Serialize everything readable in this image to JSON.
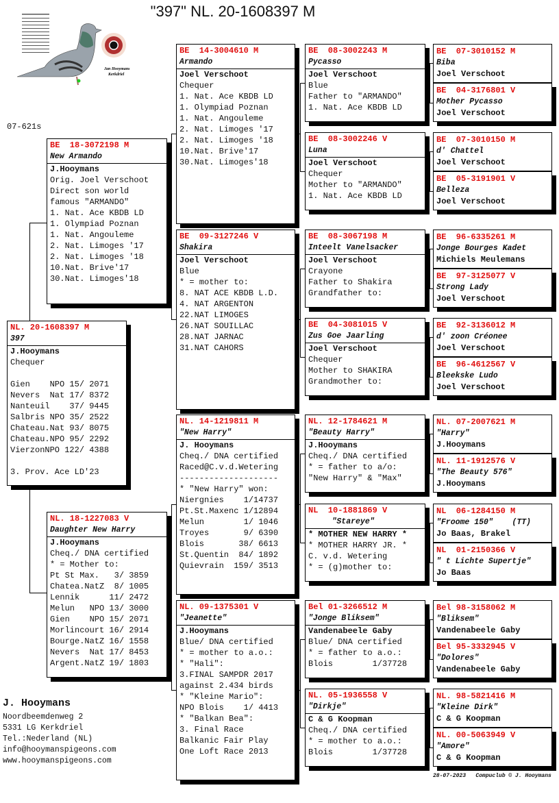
{
  "title": "\"397\"  NL. 20-1608397 M",
  "code": "07-621s",
  "logo_text": "Jan Hooymans Kerkdriel",
  "subject": {
    "ring": "NL. 20-1608397 M",
    "name": "397",
    "lines": [
      "J.Hooymans",
      "Chequer",
      "",
      "Gien    NPO 15/ 2071",
      "Nevers  Nat 17/ 8372",
      "Nanteuil    37/ 9445",
      "Salbris NPO 35/ 2522",
      "Chateau.Nat 93/ 8075",
      "Chateau.NPO 95/ 2292",
      "VierzonNPO 122/ 4388",
      "",
      "3. Prov. Ace LD'23"
    ]
  },
  "gen2": [
    {
      "ring": "BE  18-3072198 M",
      "name": "New Armando",
      "lines": [
        "J.Hooymans",
        "Orig. Joel Verschoot",
        "Direct son world",
        "famous \"ARMANDO\"",
        "1. Nat. Ace KBDB LD",
        "1. Olympiad Poznan",
        "1. Nat. Angouleme",
        "2. Nat. Limoges '17",
        "2. Nat. Limoges '18",
        "10.Nat. Brive'17",
        "30.Nat. Limoges'18"
      ]
    },
    {
      "ring": "NL. 18-1227083 V",
      "name": "Daughter New Harry",
      "lines": [
        "J.Hooymans",
        "Cheq./ DNA certified",
        "* = Mother to:",
        "Pt St Max.   3/ 3859",
        "Chatea.NatZ  8/ 1005",
        "Lennik      11/ 2472",
        "Melun   NPO 13/ 3000",
        "Gien    NPO 15/ 2071",
        "Morlincourt 16/ 2914",
        "Bourge.NatZ 16/ 1558",
        "Nevers  Nat 17/ 8453",
        "Argent.NatZ 19/ 1803"
      ]
    }
  ],
  "gen3": [
    {
      "ring": "BE  14-3004610 M",
      "name": "Armando",
      "lines": [
        "Joel Verschoot",
        "Chequer",
        "1. Nat. Ace KBDB LD",
        "1. Olympiad Poznan",
        "1. Nat. Angouleme",
        "2. Nat. Limoges '17",
        "2. Nat. Limoges '18",
        "10.Nat. Brive'17",
        "30.Nat. Limoges'18"
      ]
    },
    {
      "ring": "BE  09-3127246 V",
      "name": "Shakira",
      "lines": [
        "Joel Verschoot",
        "Blue",
        "* = mother to:",
        "8. NAT ACE KBDB L.D.",
        "4. NAT ARGENTON",
        "22.NAT LIMOGES",
        "26.NAT SOUILLAC",
        "28.NAT JARNAC",
        "31.NAT CAHORS"
      ]
    },
    {
      "ring": "NL. 14-1219811 M",
      "name": "\"New Harry\"",
      "lines": [
        "J. Hooymans",
        "Cheq./ DNA certified",
        "Raced@C.v.d.Wetering",
        "--------------------",
        "* \"New Harry\" won:",
        "Niergnies    1/14737",
        "Pt.St.Maxenc 1/12894",
        "Melun        1/ 1046",
        "Troyes       9/ 6390",
        "Blois       38/ 6613",
        "St.Quentin  84/ 1892",
        "Quievrain  159/ 3513"
      ]
    },
    {
      "ring": "NL. 09-1375301 V",
      "name": "\"Jeanette\"",
      "lines": [
        "J.Hooymans",
        "Blue/ DNA certified",
        "* = mother to a.o.:",
        "* \"Hali\":",
        "3.FINAL SAMPDR 2017",
        "against 2.434 birds",
        "* \"Kleine Mario\":",
        "NPO Blois    1/ 4413",
        "* \"Balkan Bea\":",
        "3. Final Race",
        "Balkanic Fair Play",
        "One Loft Race 2013"
      ]
    }
  ],
  "gen4": [
    {
      "ring": "BE  08-3002243 M",
      "name": "Pycasso",
      "lines": [
        "Joel Verschoot",
        "Blue",
        "Father to \"ARMANDO\"",
        "1. Nat. Ace KBDB LD"
      ]
    },
    {
      "ring": "BE  08-3002246 V",
      "name": "Luna",
      "lines": [
        "Joel Verschoot",
        "Chequer",
        "Mother to \"ARMANDO\"",
        "1. Nat. Ace KBDB LD"
      ]
    },
    {
      "ring": "BE  08-3067198 M",
      "name": "Inteelt Vanelsacker",
      "lines": [
        "Joel Verschoot",
        "Crayone",
        "Father to Shakira",
        "Grandfather to:"
      ]
    },
    {
      "ring": "BE  04-3081015 V",
      "name": "Zus Goe Jaarling",
      "lines": [
        "Joel Verschoot",
        "Chequer",
        "Mother to SHAKIRA",
        "Grandmother to:"
      ]
    },
    {
      "ring": "NL. 12-1784621 M",
      "name": "\"Beauty Harry\"",
      "lines": [
        "J.Hooymans",
        "Cheq./ DNA certified",
        "* = father to a/o:",
        "\"New Harry\" & \"Max\""
      ]
    },
    {
      "ring": "NL  10-1881869 V",
      "name": "     \"Stareye\"",
      "lines": [
        "* MOTHER NEW HARRY *",
        "* MOTHER HARRY JR. *",
        "C. v.d. Wetering",
        "* = (g)mother to:"
      ]
    },
    {
      "ring": "Bel 01-3266512 M",
      "name": "\"Jonge Bliksem\"",
      "lines": [
        "Vandenabeele Gaby",
        "Blue/ DNA certified",
        "* = father to a.o.:",
        "Blois        1/37728"
      ]
    },
    {
      "ring": "NL. 05-1936558 V",
      "name": "\"Dirkje\"",
      "lines": [
        "C & G Koopman",
        "Cheq./ DNA certified",
        "* = mother to a.o.:",
        "Blois        1/37728"
      ]
    }
  ],
  "gen5": [
    {
      "ring": "BE  07-3010152 M",
      "name": "Biba",
      "owner": "Joel Verschoot"
    },
    {
      "ring": "BE  04-3176801 V",
      "name": "Mother Pycasso",
      "owner": "Joel Verschoot"
    },
    {
      "ring": "BE  07-3010150 M",
      "name": "d' Chattel",
      "owner": "Joel Verschoot"
    },
    {
      "ring": "BE  05-3191901 V",
      "name": "Belleza",
      "owner": "Joel Verschoot"
    },
    {
      "ring": "BE  96-6335261 M",
      "name": "Jonge Bourges Kadet",
      "owner": "Michiels Meulemans"
    },
    {
      "ring": "BE  97-3125077 V",
      "name": "Strong Lady",
      "owner": "Joel Verschoot"
    },
    {
      "ring": "BE  92-3136012 M",
      "name": "d' zoon Créonee",
      "owner": "Joel Verschoot"
    },
    {
      "ring": "BE  96-4612567 V",
      "name": "Bleekske Ludo",
      "owner": "Joel Verschoot"
    },
    {
      "ring": "NL. 07-2007621 M",
      "name": "\"Harry\"",
      "owner": "J.Hooymans"
    },
    {
      "ring": "NL. 11-1912576 V",
      "name": "\"The Beauty 576\"",
      "owner": "J.Hooymans"
    },
    {
      "ring": "NL  06-1284150 M",
      "name": "\"Froome 150\"    (TT)",
      "owner": "Jo Baas, Brakel"
    },
    {
      "ring": "NL  01-2150366 V",
      "name": "\" t Lichte Supertje\"",
      "owner": "Jo Baas"
    },
    {
      "ring": "Bel 98-3158062 M",
      "name": "\"Bliksem\"",
      "owner": "Vandenabeele Gaby"
    },
    {
      "ring": "Bel 95-3332945 V",
      "name": "\"Dolores\"",
      "owner": "Vandenabeele Gaby"
    },
    {
      "ring": "NL. 98-5821416 M",
      "name": "\"Kleine Dirk\"",
      "owner": "C & G Koopman"
    },
    {
      "ring": "NL. 00-5063949 V",
      "name": "\"Amore\"",
      "owner": "C & G Koopman"
    }
  ],
  "address": {
    "name": "J. Hooymans",
    "lines": [
      "Noordbeemdenweg 2",
      "5331 LG  Kerkdriel",
      "Tel.:Nederland (NL)",
      "info@hooymanspigeons.com",
      "www.hooymanspigeons.com"
    ]
  },
  "footer": "28-07-2023   Compuclub © J. Hooymans",
  "colors": {
    "ring": "#e01010",
    "text": "#111111",
    "shadow": "#000000"
  }
}
